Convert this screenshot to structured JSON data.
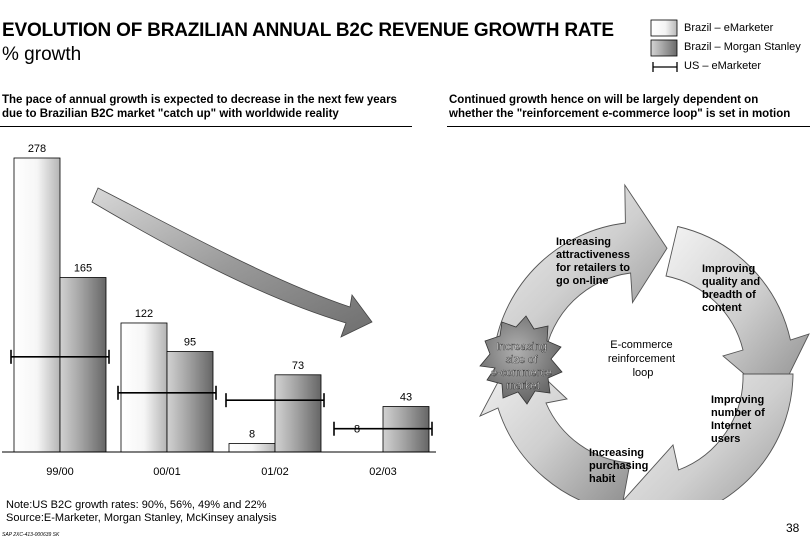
{
  "header": {
    "title": "EVOLUTION OF BRAZILIAN ANNUAL B2C REVENUE GROWTH RATE",
    "subtitle": "% growth"
  },
  "legend": {
    "emarketer": "Brazil – eMarketer",
    "morgan_stanley": "Brazil – Morgan Stanley",
    "us": "US – eMarketer"
  },
  "left_heading": {
    "line1": "The pace of annual growth is expected to decrease in the next few years",
    "line2": "due to Brazilian B2C market \"catch up\" with worldwide reality"
  },
  "right_heading": {
    "line1": "Continued growth hence on will be largely dependent on",
    "line2": "whether the \"reinforcement e-commerce loop\" is set in motion"
  },
  "chart_data": {
    "type": "bar",
    "categories": [
      "99/00",
      "00/01",
      "01/02",
      "02/03"
    ],
    "series": [
      {
        "name": "Brazil – eMarketer",
        "values": [
          278,
          122,
          8,
          null
        ],
        "labels": [
          "278",
          "122",
          "8",
          ""
        ]
      },
      {
        "name": "Brazil – Morgan Stanley",
        "values": [
          165,
          95,
          73,
          43
        ],
        "labels": [
          "165",
          "95",
          "73",
          "43"
        ]
      },
      {
        "name": "US – eMarketer",
        "values": [
          90,
          56,
          49,
          22
        ]
      }
    ],
    "extra_labels": [
      {
        "category": "02/03",
        "text": "8"
      }
    ],
    "ylim": [
      0,
      278
    ]
  },
  "loop": {
    "center": [
      "E-commerce",
      "reinforcement",
      "loop"
    ],
    "starburst": [
      "Increasing",
      "size of",
      "e-commerce",
      "market"
    ],
    "steps": [
      [
        "Increasing",
        "attractiveness",
        "for retailers to",
        "go on-line"
      ],
      [
        "Improving",
        "quality and",
        "breadth of",
        "content"
      ],
      [
        "Improving",
        "number of",
        "Internet",
        "users"
      ],
      [
        "Increasing",
        "purchasing",
        "habit"
      ]
    ]
  },
  "note": {
    "line1": "Note:US B2C growth rates: 90%, 56%, 49% and 22%",
    "line2": "Source:E-Marketer, Morgan Stanley, McKinsey analysis"
  },
  "page_number": "38",
  "footer_code": "SAP 2XC-413-000639 SK"
}
